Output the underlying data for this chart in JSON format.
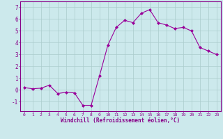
{
  "x": [
    0,
    1,
    2,
    3,
    4,
    5,
    6,
    7,
    8,
    9,
    10,
    11,
    12,
    13,
    14,
    15,
    16,
    17,
    18,
    19,
    20,
    21,
    22,
    23
  ],
  "y": [
    0.2,
    0.1,
    0.15,
    0.4,
    -0.3,
    -0.2,
    -0.25,
    -1.3,
    -1.3,
    1.2,
    3.8,
    5.3,
    5.9,
    5.7,
    6.5,
    6.8,
    5.7,
    5.5,
    5.2,
    5.3,
    5.0,
    3.6,
    3.3,
    3.0
  ],
  "line_color": "#990099",
  "marker": "D",
  "marker_size": 2.0,
  "bg_color": "#cce9ec",
  "grid_color": "#aacccc",
  "xlabel": "Windchill (Refroidissement éolien,°C)",
  "ylim": [
    -1.8,
    7.5
  ],
  "xlim": [
    -0.5,
    23.5
  ],
  "yticks": [
    -1,
    0,
    1,
    2,
    3,
    4,
    5,
    6,
    7
  ],
  "xticks": [
    0,
    1,
    2,
    3,
    4,
    5,
    6,
    7,
    8,
    9,
    10,
    11,
    12,
    13,
    14,
    15,
    16,
    17,
    18,
    19,
    20,
    21,
    22,
    23
  ],
  "tick_color": "#880088",
  "label_color": "#880088",
  "spine_color": "#880088"
}
